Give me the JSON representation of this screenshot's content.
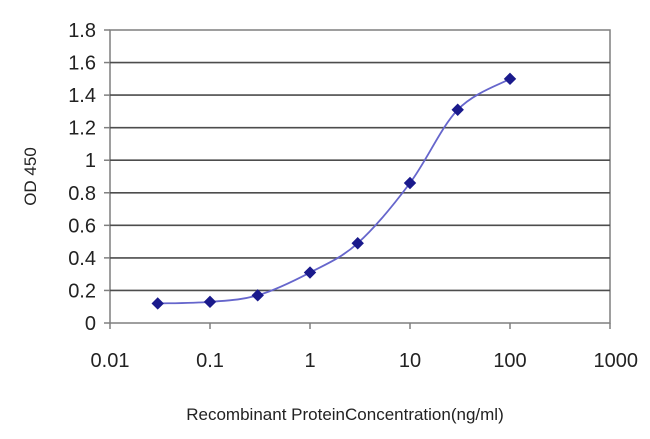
{
  "chart_data": {
    "type": "line",
    "title": "",
    "xlabel": "Recombinant ProteinConcentration(ng/ml)",
    "ylabel": "OD 450",
    "x_scale": "log",
    "xlim": [
      0.01,
      1000
    ],
    "ylim": [
      0,
      1.8
    ],
    "x_ticks": [
      "0.01",
      "0.1",
      "1",
      "10",
      "100",
      "1000"
    ],
    "y_ticks": [
      "0",
      "0.2",
      "0.4",
      "0.6",
      "0.8",
      "1",
      "1.2",
      "1.4",
      "1.6",
      "1.8"
    ],
    "grid": true,
    "legend": "none",
    "series": [
      {
        "x": [
          0.03,
          0.1,
          0.3,
          1,
          3,
          10,
          30,
          100
        ],
        "y": [
          0.12,
          0.13,
          0.17,
          0.31,
          0.49,
          0.86,
          1.31,
          1.5
        ],
        "color": "#1a1a8c",
        "line_color": "#6666cc",
        "marker": "diamond"
      }
    ],
    "colors": {
      "plot_border": "#7f7f7f",
      "gridline": "#4d4d4d",
      "text": "#222222"
    }
  }
}
